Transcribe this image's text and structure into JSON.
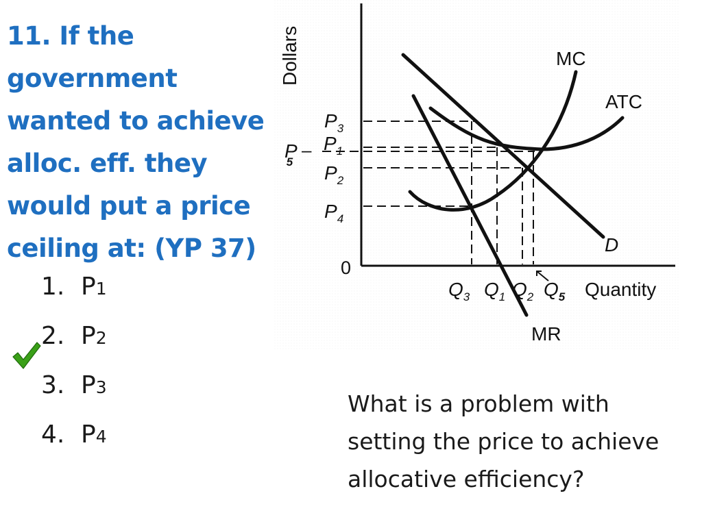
{
  "question": {
    "lines": [
      "11. If the",
      "government",
      "wanted to achieve",
      "alloc. eff. they",
      "would put a price",
      "ceiling at: (YP 37)"
    ]
  },
  "answers": [
    {
      "number": "1.",
      "letter": "P",
      "sub": "1"
    },
    {
      "number": "2.",
      "letter": "P",
      "sub": "2"
    },
    {
      "number": "3.",
      "letter": "P",
      "sub": "3"
    },
    {
      "number": "4.",
      "letter": "P",
      "sub": "4"
    }
  ],
  "correct_icon": "checkmark-icon",
  "colors": {
    "title": "#1f6fc0",
    "check": "#3aa018"
  },
  "diagram": {
    "y_axis_label": "Dollars",
    "x_axis_label": "Quantity",
    "origin_label": "0",
    "curve_labels": {
      "mc": "MC",
      "atc": "ATC",
      "d": "D",
      "mr": "MR"
    },
    "price_labels": {
      "p3": {
        "letter": "P",
        "sub": "3"
      },
      "p1": {
        "letter": "P",
        "sub": "1"
      },
      "p5": {
        "letter": "P",
        "sub": "5"
      },
      "p2": {
        "letter": "P",
        "sub": "2"
      },
      "p4": {
        "letter": "P",
        "sub": "4"
      }
    },
    "quantity_labels": {
      "q3": {
        "letter": "Q",
        "sub": "3"
      },
      "q1": {
        "letter": "Q",
        "sub": "1"
      },
      "q2": {
        "letter": "Q",
        "sub": "2"
      },
      "q5": {
        "letter": "Q",
        "sub": "5"
      }
    }
  },
  "followup": {
    "lines": [
      "What is a problem with",
      "setting the price to achieve",
      "allocative efficiency?"
    ]
  }
}
